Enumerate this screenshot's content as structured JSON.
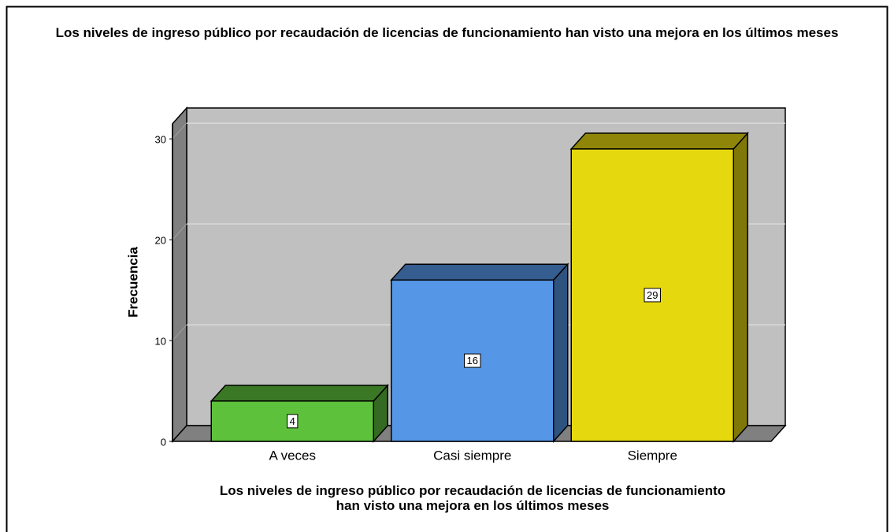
{
  "chart_data": {
    "type": "bar3d",
    "title": "Los niveles de ingreso público por recaudación de licencias de funcionamiento han visto una mejora en los últimos meses",
    "x_label": "Los niveles de ingreso público por recaudación de licencias de funcionamiento han visto una mejora en los últimos meses",
    "y_label": "Frecuencia",
    "categories": [
      "A veces",
      "Casi siempre",
      "Siempre"
    ],
    "values": [
      4,
      16,
      29
    ],
    "colors": [
      "#5ec13c",
      "#5596e6",
      "#e6d80f"
    ],
    "ylim": [
      0,
      31.5
    ],
    "yticks": [
      0,
      10,
      20,
      30
    ],
    "grid": true
  }
}
